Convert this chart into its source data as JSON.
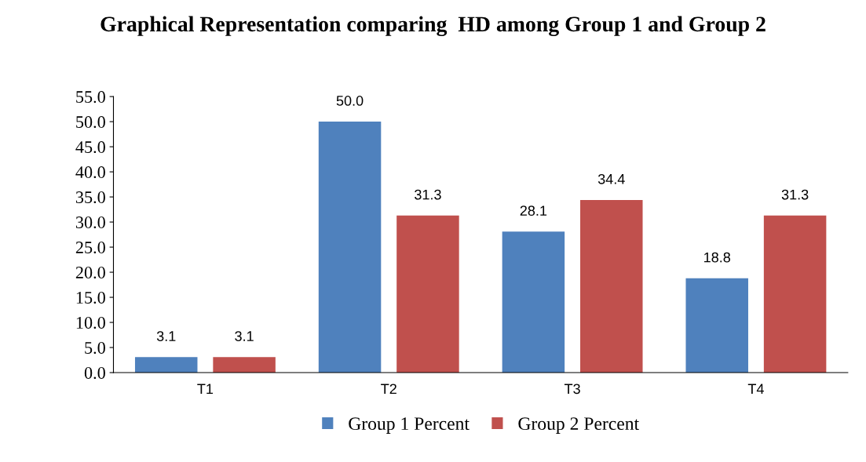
{
  "chart_data": {
    "type": "bar",
    "title": "Graphical Representation comparing  HD among Group 1 and Group 2",
    "categories": [
      "T1",
      "T2",
      "T3",
      "T4"
    ],
    "series": [
      {
        "name": "Group 1 Percent",
        "color": "#4f81bd",
        "values": [
          3.1,
          50.0,
          28.1,
          18.8
        ],
        "value_labels": [
          "3.1",
          "50.0",
          "28.1",
          "18.8"
        ]
      },
      {
        "name": "Group 2 Percent",
        "color": "#c0504d",
        "values": [
          3.1,
          31.3,
          34.4,
          31.3
        ],
        "value_labels": [
          "3.1",
          "31.3",
          "34.4",
          "31.3"
        ]
      }
    ],
    "ylim": [
      0,
      55
    ],
    "yticks": [
      {
        "value": 0,
        "label": "0.0"
      },
      {
        "value": 5,
        "label": "5.0"
      },
      {
        "value": 10,
        "label": "10.0"
      },
      {
        "value": 15,
        "label": "15.0"
      },
      {
        "value": 20,
        "label": "20.0"
      },
      {
        "value": 25,
        "label": "25.0"
      },
      {
        "value": 30,
        "label": "30.0"
      },
      {
        "value": 35,
        "label": "35.0"
      },
      {
        "value": 40,
        "label": "40.0"
      },
      {
        "value": 45,
        "label": "45.0"
      },
      {
        "value": 50,
        "label": "50.0"
      },
      {
        "value": 55,
        "label": "55.0"
      }
    ],
    "grid": false,
    "legend": "bottom"
  }
}
